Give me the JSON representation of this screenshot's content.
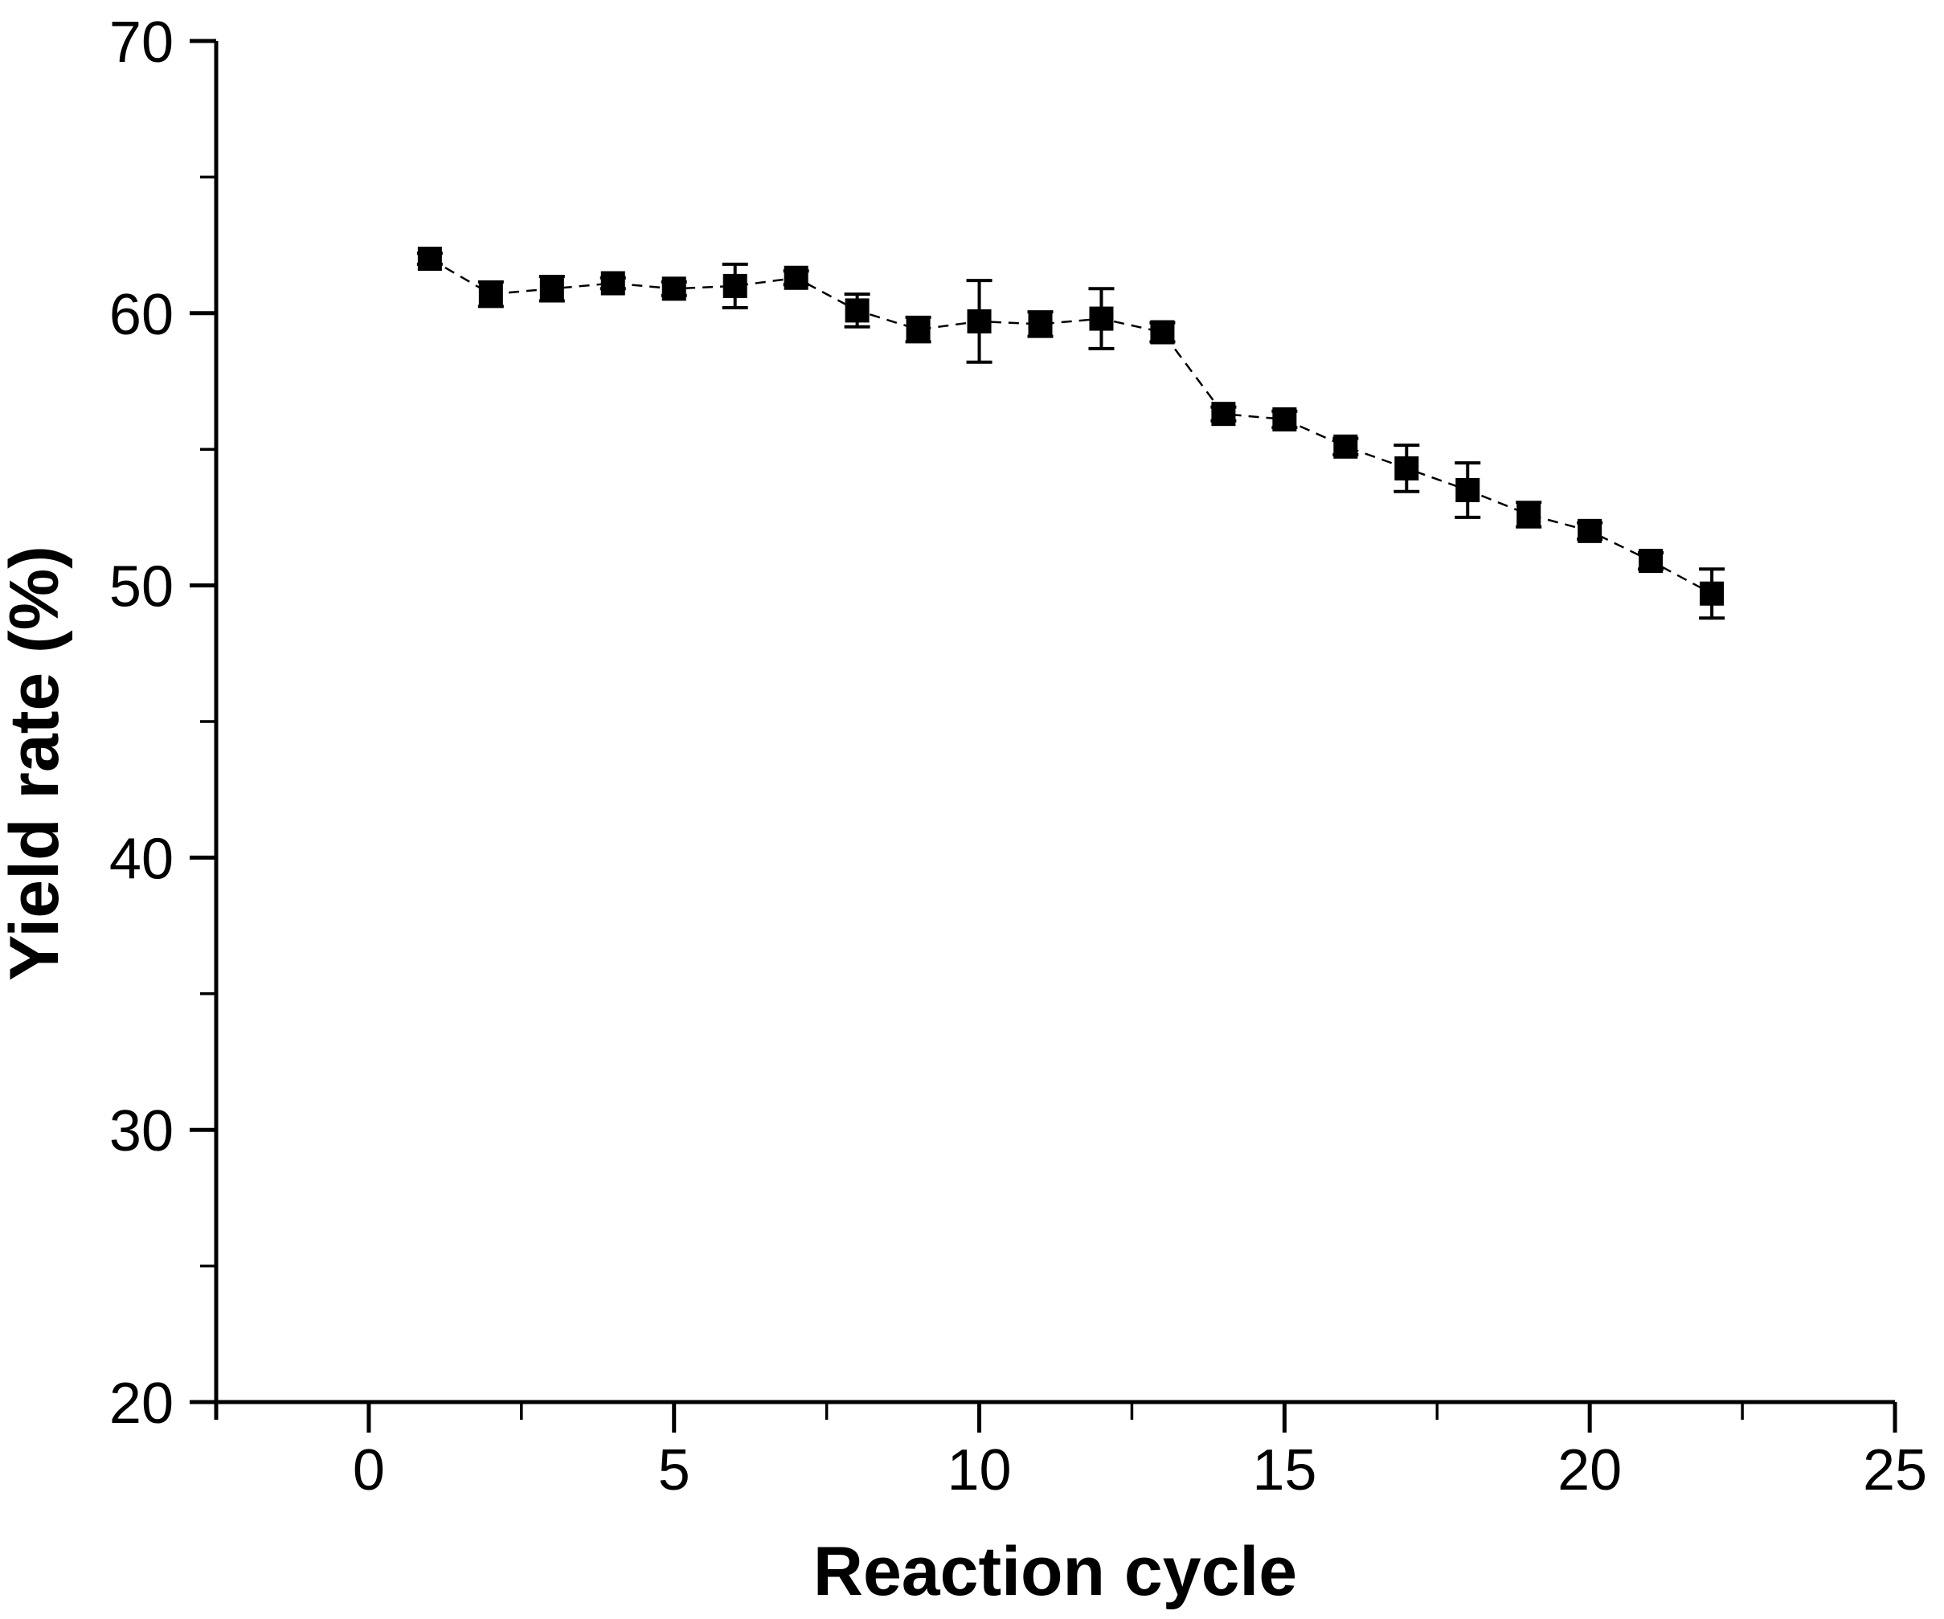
{
  "chart_data": {
    "type": "line",
    "title": "",
    "xlabel": "Reaction cycle",
    "ylabel": "Yield rate (%)",
    "series": [
      {
        "name": "Yield rate",
        "x": [
          1,
          2,
          3,
          4,
          5,
          6,
          7,
          8,
          9,
          10,
          11,
          12,
          13,
          14,
          15,
          16,
          17,
          18,
          19,
          20,
          21,
          22
        ],
        "values": [
          62.0,
          60.7,
          60.9,
          61.1,
          60.9,
          61.0,
          61.3,
          60.1,
          59.4,
          59.7,
          59.6,
          59.8,
          59.3,
          56.3,
          56.1,
          55.1,
          54.3,
          53.5,
          52.6,
          52.0,
          50.9,
          49.7
        ],
        "errors": [
          0.2,
          0.45,
          0.45,
          0.2,
          0.25,
          0.8,
          0.25,
          0.6,
          0.45,
          1.5,
          0.45,
          1.1,
          0.35,
          0.25,
          0.3,
          0.3,
          0.85,
          1.0,
          0.45,
          0.3,
          0.3,
          0.9
        ]
      }
    ],
    "xlim": [
      -2.5,
      25
    ],
    "ylim": [
      20,
      70
    ],
    "x_ticks": [
      0,
      5,
      10,
      15,
      20,
      25
    ],
    "x_minor_ticks": [
      2.5,
      7.5,
      12.5,
      17.5,
      22.5
    ],
    "y_ticks": [
      20,
      30,
      40,
      50,
      60,
      70
    ],
    "y_minor_ticks": [
      25,
      35,
      45,
      55,
      65
    ],
    "marker": "square",
    "marker_color": "#000000",
    "line_color": "#000000",
    "line_style": "dashed",
    "axis_color": "#000000",
    "grid": false,
    "legend": "none"
  }
}
